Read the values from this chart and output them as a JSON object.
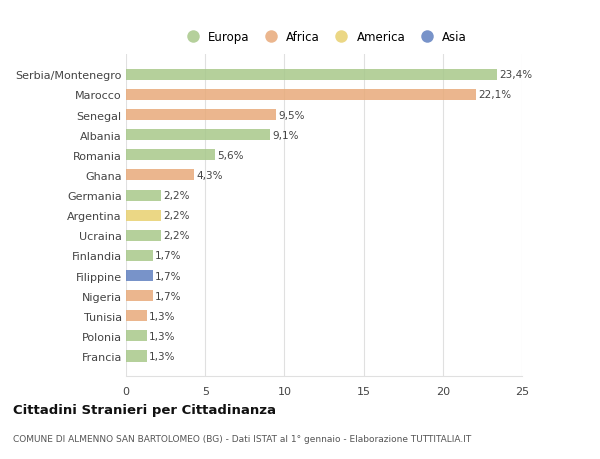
{
  "countries": [
    "Serbia/Montenegro",
    "Marocco",
    "Senegal",
    "Albania",
    "Romania",
    "Ghana",
    "Germania",
    "Argentina",
    "Ucraina",
    "Finlandia",
    "Filippine",
    "Nigeria",
    "Tunisia",
    "Polonia",
    "Francia"
  ],
  "values": [
    23.4,
    22.1,
    9.5,
    9.1,
    5.6,
    4.3,
    2.2,
    2.2,
    2.2,
    1.7,
    1.7,
    1.7,
    1.3,
    1.3,
    1.3
  ],
  "labels": [
    "23,4%",
    "22,1%",
    "9,5%",
    "9,1%",
    "5,6%",
    "4,3%",
    "2,2%",
    "2,2%",
    "2,2%",
    "1,7%",
    "1,7%",
    "1,7%",
    "1,3%",
    "1,3%",
    "1,3%"
  ],
  "continents": [
    "Europa",
    "Africa",
    "Africa",
    "Europa",
    "Europa",
    "Africa",
    "Europa",
    "America",
    "Europa",
    "Europa",
    "Asia",
    "Africa",
    "Africa",
    "Europa",
    "Europa"
  ],
  "colors": {
    "Europa": "#a8c88a",
    "Africa": "#e8aa7a",
    "America": "#e8d070",
    "Asia": "#6080c0"
  },
  "legend_order": [
    "Europa",
    "Africa",
    "America",
    "Asia"
  ],
  "xlim": [
    0,
    25
  ],
  "xticks": [
    0,
    5,
    10,
    15,
    20,
    25
  ],
  "title": "Cittadini Stranieri per Cittadinanza",
  "subtitle": "COMUNE DI ALMENNO SAN BARTOLOMEO (BG) - Dati ISTAT al 1° gennaio - Elaborazione TUTTITALIA.IT",
  "background_color": "#ffffff",
  "grid_color": "#e0e0e0",
  "bar_height": 0.55
}
